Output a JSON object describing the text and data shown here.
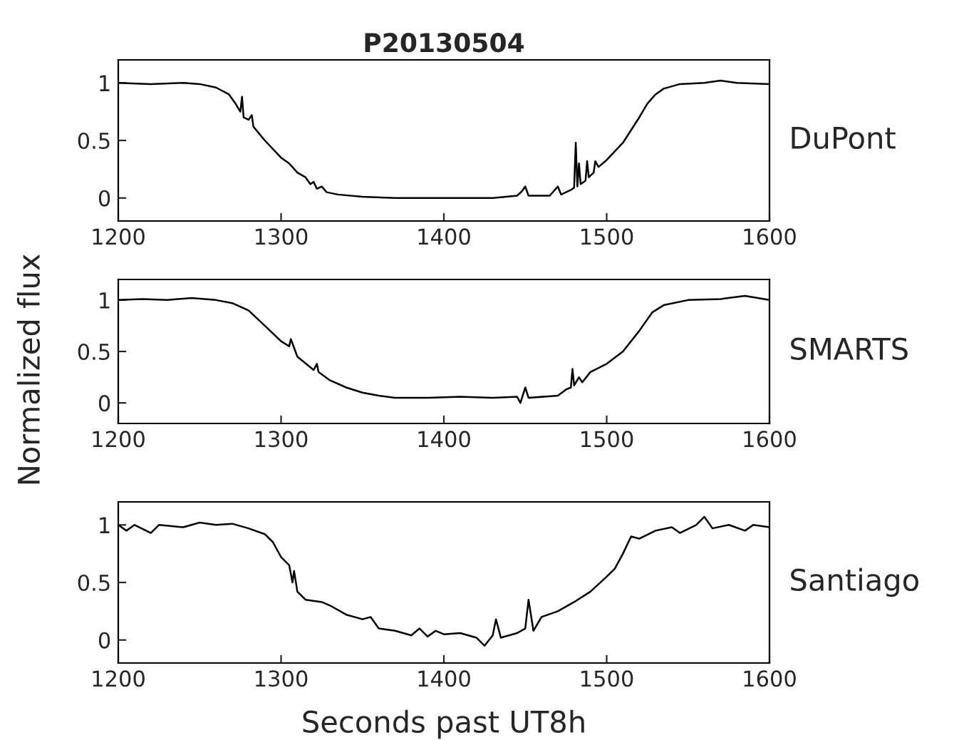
{
  "chart_data": [
    {
      "type": "line",
      "title": "P20130504",
      "xlim": [
        1200,
        1600
      ],
      "xticks": [
        1200,
        1300,
        1400,
        1500,
        1600
      ],
      "ylim": [
        -0.2,
        1.2
      ],
      "yticks": [
        0,
        0.5,
        1
      ],
      "grid": false,
      "legend": false,
      "series": [
        {
          "name": "DuPont",
          "color": "#000000",
          "x": [
            1200,
            1220,
            1240,
            1250,
            1260,
            1268,
            1272,
            1275,
            1276,
            1277,
            1280,
            1282,
            1283,
            1290,
            1300,
            1305,
            1310,
            1315,
            1318,
            1320,
            1322,
            1325,
            1328,
            1335,
            1350,
            1370,
            1400,
            1430,
            1445,
            1448,
            1450,
            1452,
            1465,
            1470,
            1472,
            1478,
            1480,
            1481,
            1482,
            1483,
            1484,
            1487,
            1488,
            1489,
            1492,
            1493,
            1495,
            1500,
            1510,
            1520,
            1525,
            1530,
            1535,
            1545,
            1560,
            1570,
            1580,
            1600
          ],
          "values": [
            1.0,
            0.99,
            1.0,
            0.99,
            0.96,
            0.9,
            0.82,
            0.75,
            0.88,
            0.7,
            0.68,
            0.72,
            0.62,
            0.5,
            0.35,
            0.3,
            0.22,
            0.18,
            0.12,
            0.14,
            0.08,
            0.1,
            0.05,
            0.03,
            0.01,
            0.0,
            0.0,
            0.0,
            0.02,
            0.06,
            0.1,
            0.02,
            0.02,
            0.1,
            0.03,
            0.07,
            0.09,
            0.48,
            0.1,
            0.3,
            0.12,
            0.15,
            0.32,
            0.18,
            0.22,
            0.32,
            0.27,
            0.33,
            0.48,
            0.7,
            0.82,
            0.9,
            0.95,
            0.99,
            1.0,
            1.02,
            1.0,
            0.99
          ]
        }
      ]
    },
    {
      "type": "line",
      "ylabel": "Normalized flux",
      "xlim": [
        1200,
        1600
      ],
      "xticks": [
        1200,
        1300,
        1400,
        1500,
        1600
      ],
      "ylim": [
        -0.2,
        1.2
      ],
      "yticks": [
        0,
        0.5,
        1
      ],
      "grid": false,
      "legend": false,
      "series": [
        {
          "name": "SMARTS",
          "color": "#000000",
          "x": [
            1200,
            1215,
            1230,
            1245,
            1260,
            1270,
            1280,
            1290,
            1300,
            1305,
            1306,
            1310,
            1320,
            1322,
            1323,
            1330,
            1340,
            1350,
            1360,
            1370,
            1390,
            1410,
            1430,
            1445,
            1447,
            1450,
            1452,
            1470,
            1475,
            1478,
            1479,
            1480,
            1483,
            1485,
            1490,
            1500,
            1510,
            1520,
            1528,
            1535,
            1550,
            1570,
            1585,
            1600
          ],
          "values": [
            1.0,
            1.01,
            1.0,
            1.02,
            1.0,
            0.97,
            0.9,
            0.75,
            0.6,
            0.55,
            0.62,
            0.45,
            0.32,
            0.38,
            0.3,
            0.22,
            0.15,
            0.1,
            0.07,
            0.05,
            0.05,
            0.06,
            0.05,
            0.06,
            0.0,
            0.15,
            0.05,
            0.07,
            0.13,
            0.15,
            0.33,
            0.17,
            0.25,
            0.2,
            0.3,
            0.38,
            0.5,
            0.7,
            0.88,
            0.95,
            1.0,
            1.01,
            1.04,
            1.0
          ]
        }
      ]
    },
    {
      "type": "line",
      "xlabel": "Seconds past UT8h",
      "xlim": [
        1200,
        1600
      ],
      "xticks": [
        1200,
        1300,
        1400,
        1500,
        1600
      ],
      "ylim": [
        -0.2,
        1.2
      ],
      "yticks": [
        0,
        0.5,
        1
      ],
      "grid": false,
      "legend": false,
      "series": [
        {
          "name": "Santiago",
          "color": "#000000",
          "x": [
            1200,
            1205,
            1210,
            1220,
            1225,
            1240,
            1250,
            1260,
            1270,
            1280,
            1290,
            1295,
            1300,
            1305,
            1307,
            1308,
            1310,
            1315,
            1325,
            1330,
            1340,
            1350,
            1355,
            1360,
            1370,
            1380,
            1385,
            1390,
            1395,
            1400,
            1410,
            1420,
            1425,
            1430,
            1432,
            1435,
            1445,
            1450,
            1452,
            1455,
            1460,
            1470,
            1480,
            1490,
            1500,
            1505,
            1510,
            1515,
            1520,
            1530,
            1540,
            1545,
            1555,
            1560,
            1565,
            1575,
            1585,
            1590,
            1600
          ],
          "values": [
            1.0,
            0.95,
            1.0,
            0.93,
            1.0,
            0.98,
            1.02,
            1.0,
            1.01,
            0.97,
            0.92,
            0.85,
            0.72,
            0.65,
            0.5,
            0.6,
            0.42,
            0.35,
            0.33,
            0.3,
            0.22,
            0.18,
            0.2,
            0.1,
            0.08,
            0.04,
            0.1,
            0.03,
            0.08,
            0.05,
            0.06,
            0.02,
            -0.05,
            0.04,
            0.18,
            0.02,
            0.06,
            0.1,
            0.35,
            0.08,
            0.2,
            0.25,
            0.33,
            0.42,
            0.55,
            0.62,
            0.75,
            0.9,
            0.88,
            0.95,
            0.98,
            0.93,
            1.0,
            1.07,
            0.97,
            1.0,
            0.95,
            1.0,
            0.98
          ]
        }
      ]
    }
  ]
}
